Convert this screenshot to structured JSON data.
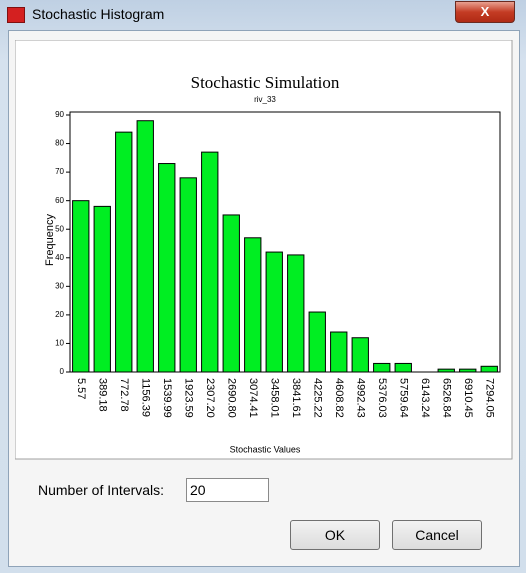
{
  "window": {
    "title": "Stochastic Histogram",
    "close": "X"
  },
  "chart_data": {
    "type": "bar",
    "title": "Stochastic Simulation",
    "subtitle": "riv_33",
    "x_label": "Stochastic Values",
    "y_label": "Frequency",
    "categories": [
      "5.57",
      "389.18",
      "772.78",
      "1156.39",
      "1539.99",
      "1923.59",
      "2307.20",
      "2690.80",
      "3074.41",
      "3458.01",
      "3841.61",
      "4225.22",
      "4608.82",
      "4992.43",
      "5376.03",
      "5759.64",
      "6143.24",
      "6526.84",
      "6910.45",
      "7294.05"
    ],
    "values": [
      60,
      58,
      84,
      88,
      73,
      68,
      77,
      55,
      47,
      42,
      41,
      21,
      14,
      12,
      3,
      3,
      0,
      1,
      1,
      2
    ],
    "color": "#00ee22",
    "ylim": [
      0,
      90
    ],
    "yticks": [
      0,
      10,
      20,
      30,
      40,
      50,
      60,
      70,
      80,
      90
    ]
  },
  "controls": {
    "intervals_label": "Number of Intervals:",
    "intervals_value": "20",
    "ok": "OK",
    "cancel": "Cancel"
  }
}
